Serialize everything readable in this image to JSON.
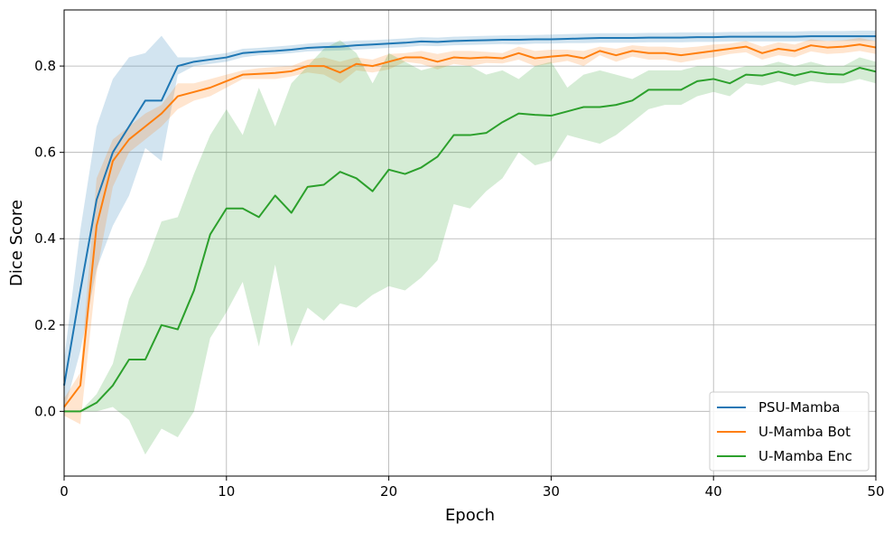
{
  "chart_data": {
    "type": "line",
    "xlabel": "Epoch",
    "ylabel": "Dice Score",
    "xlim": [
      0,
      50
    ],
    "ylim": [
      -0.15,
      0.93
    ],
    "x_ticks": [
      0,
      10,
      20,
      30,
      40,
      50
    ],
    "y_ticks": [
      0.0,
      0.2,
      0.4,
      0.6,
      0.8
    ],
    "x_tick_labels": [
      "0",
      "10",
      "20",
      "30",
      "40",
      "50"
    ],
    "y_tick_labels": [
      "0.0",
      "0.2",
      "0.4",
      "0.6",
      "0.8"
    ],
    "grid": true,
    "legend_position": "lower-right",
    "series": [
      {
        "name": "PSU-Mamba",
        "color": "#1f77b4",
        "x": [
          0,
          1,
          2,
          3,
          4,
          5,
          6,
          7,
          8,
          9,
          10,
          11,
          12,
          13,
          14,
          15,
          16,
          17,
          18,
          19,
          20,
          21,
          22,
          23,
          24,
          25,
          26,
          27,
          28,
          29,
          30,
          31,
          32,
          33,
          34,
          35,
          36,
          37,
          38,
          39,
          40,
          41,
          42,
          43,
          44,
          45,
          46,
          47,
          48,
          49,
          50
        ],
        "values": [
          0.06,
          0.28,
          0.49,
          0.6,
          0.66,
          0.72,
          0.72,
          0.8,
          0.81,
          0.815,
          0.82,
          0.83,
          0.833,
          0.835,
          0.838,
          0.842,
          0.844,
          0.845,
          0.848,
          0.85,
          0.852,
          0.854,
          0.857,
          0.856,
          0.858,
          0.859,
          0.86,
          0.861,
          0.861,
          0.862,
          0.862,
          0.863,
          0.864,
          0.865,
          0.865,
          0.865,
          0.866,
          0.866,
          0.866,
          0.867,
          0.867,
          0.868,
          0.868,
          0.868,
          0.868,
          0.868,
          0.869,
          0.869,
          0.869,
          0.869,
          0.869
        ],
        "band_upper": [
          0.12,
          0.42,
          0.66,
          0.77,
          0.82,
          0.83,
          0.87,
          0.82,
          0.82,
          0.825,
          0.83,
          0.84,
          0.842,
          0.845,
          0.848,
          0.852,
          0.855,
          0.856,
          0.859,
          0.86,
          0.862,
          0.864,
          0.867,
          0.866,
          0.868,
          0.869,
          0.87,
          0.871,
          0.872,
          0.872,
          0.873,
          0.874,
          0.875,
          0.876,
          0.876,
          0.876,
          0.877,
          0.877,
          0.878,
          0.878,
          0.878,
          0.879,
          0.879,
          0.88,
          0.88,
          0.88,
          0.881,
          0.881,
          0.881,
          0.882,
          0.882
        ],
        "band_lower": [
          0.0,
          0.14,
          0.33,
          0.43,
          0.5,
          0.61,
          0.58,
          0.78,
          0.8,
          0.805,
          0.81,
          0.82,
          0.825,
          0.827,
          0.83,
          0.834,
          0.835,
          0.836,
          0.838,
          0.84,
          0.842,
          0.844,
          0.847,
          0.846,
          0.848,
          0.849,
          0.85,
          0.851,
          0.85,
          0.852,
          0.852,
          0.853,
          0.853,
          0.854,
          0.854,
          0.854,
          0.855,
          0.855,
          0.855,
          0.856,
          0.856,
          0.857,
          0.857,
          0.857,
          0.857,
          0.857,
          0.858,
          0.858,
          0.858,
          0.858,
          0.858
        ]
      },
      {
        "name": "U-Mamba Bot",
        "color": "#ff7f0e",
        "x": [
          0,
          1,
          2,
          3,
          4,
          5,
          6,
          7,
          8,
          9,
          10,
          11,
          12,
          13,
          14,
          15,
          16,
          17,
          18,
          19,
          20,
          21,
          22,
          23,
          24,
          25,
          26,
          27,
          28,
          29,
          30,
          31,
          32,
          33,
          34,
          35,
          36,
          37,
          38,
          39,
          40,
          41,
          42,
          43,
          44,
          45,
          46,
          47,
          48,
          49,
          50
        ],
        "values": [
          0.01,
          0.06,
          0.43,
          0.58,
          0.63,
          0.66,
          0.69,
          0.73,
          0.74,
          0.75,
          0.765,
          0.78,
          0.782,
          0.784,
          0.788,
          0.8,
          0.8,
          0.785,
          0.805,
          0.8,
          0.81,
          0.82,
          0.82,
          0.81,
          0.82,
          0.818,
          0.82,
          0.818,
          0.83,
          0.818,
          0.822,
          0.825,
          0.818,
          0.835,
          0.825,
          0.835,
          0.83,
          0.83,
          0.825,
          0.83,
          0.835,
          0.84,
          0.845,
          0.83,
          0.84,
          0.835,
          0.848,
          0.843,
          0.845,
          0.85,
          0.843
        ],
        "band_upper": [
          0.03,
          0.09,
          0.54,
          0.63,
          0.66,
          0.69,
          0.71,
          0.76,
          0.76,
          0.77,
          0.78,
          0.79,
          0.795,
          0.798,
          0.8,
          0.815,
          0.82,
          0.81,
          0.82,
          0.815,
          0.828,
          0.83,
          0.835,
          0.828,
          0.835,
          0.835,
          0.833,
          0.83,
          0.845,
          0.835,
          0.838,
          0.838,
          0.835,
          0.845,
          0.84,
          0.848,
          0.845,
          0.845,
          0.842,
          0.845,
          0.85,
          0.852,
          0.858,
          0.845,
          0.855,
          0.85,
          0.862,
          0.858,
          0.86,
          0.865,
          0.858
        ],
        "band_lower": [
          -0.01,
          -0.03,
          0.32,
          0.52,
          0.6,
          0.63,
          0.66,
          0.7,
          0.72,
          0.73,
          0.75,
          0.77,
          0.77,
          0.77,
          0.776,
          0.785,
          0.78,
          0.76,
          0.79,
          0.785,
          0.792,
          0.81,
          0.805,
          0.792,
          0.805,
          0.8,
          0.807,
          0.806,
          0.815,
          0.8,
          0.806,
          0.812,
          0.8,
          0.825,
          0.81,
          0.822,
          0.815,
          0.815,
          0.808,
          0.815,
          0.82,
          0.828,
          0.832,
          0.815,
          0.825,
          0.82,
          0.834,
          0.828,
          0.83,
          0.835,
          0.828
        ]
      },
      {
        "name": "U-Mamba Enc",
        "color": "#2ca02c",
        "x": [
          0,
          1,
          2,
          3,
          4,
          5,
          6,
          7,
          8,
          9,
          10,
          11,
          12,
          13,
          14,
          15,
          16,
          17,
          18,
          19,
          20,
          21,
          22,
          23,
          24,
          25,
          26,
          27,
          28,
          29,
          30,
          31,
          32,
          33,
          34,
          35,
          36,
          37,
          38,
          39,
          40,
          41,
          42,
          43,
          44,
          45,
          46,
          47,
          48,
          49,
          50
        ],
        "values": [
          0.0,
          0.0,
          0.02,
          0.06,
          0.12,
          0.12,
          0.2,
          0.19,
          0.28,
          0.41,
          0.47,
          0.47,
          0.45,
          0.5,
          0.46,
          0.52,
          0.525,
          0.555,
          0.54,
          0.51,
          0.56,
          0.55,
          0.565,
          0.59,
          0.64,
          0.64,
          0.645,
          0.67,
          0.69,
          0.687,
          0.685,
          0.695,
          0.705,
          0.705,
          0.71,
          0.72,
          0.745,
          0.745,
          0.745,
          0.765,
          0.77,
          0.76,
          0.78,
          0.778,
          0.787,
          0.778,
          0.787,
          0.782,
          0.78,
          0.796,
          0.787
        ],
        "band_upper": [
          0.0,
          0.0,
          0.04,
          0.11,
          0.26,
          0.34,
          0.44,
          0.45,
          0.55,
          0.64,
          0.7,
          0.64,
          0.75,
          0.66,
          0.76,
          0.8,
          0.84,
          0.86,
          0.83,
          0.76,
          0.83,
          0.81,
          0.79,
          0.8,
          0.8,
          0.8,
          0.78,
          0.79,
          0.77,
          0.8,
          0.81,
          0.75,
          0.78,
          0.79,
          0.78,
          0.77,
          0.79,
          0.79,
          0.79,
          0.8,
          0.8,
          0.79,
          0.8,
          0.8,
          0.81,
          0.8,
          0.81,
          0.8,
          0.8,
          0.82,
          0.81
        ],
        "band_lower": [
          0.0,
          0.0,
          0.0,
          0.01,
          -0.02,
          -0.1,
          -0.04,
          -0.06,
          0.0,
          0.17,
          0.23,
          0.3,
          0.15,
          0.34,
          0.15,
          0.24,
          0.21,
          0.25,
          0.24,
          0.27,
          0.29,
          0.28,
          0.31,
          0.35,
          0.48,
          0.47,
          0.51,
          0.54,
          0.6,
          0.57,
          0.58,
          0.64,
          0.63,
          0.62,
          0.64,
          0.67,
          0.7,
          0.71,
          0.71,
          0.73,
          0.74,
          0.73,
          0.76,
          0.755,
          0.765,
          0.755,
          0.765,
          0.76,
          0.76,
          0.77,
          0.76
        ]
      }
    ]
  }
}
